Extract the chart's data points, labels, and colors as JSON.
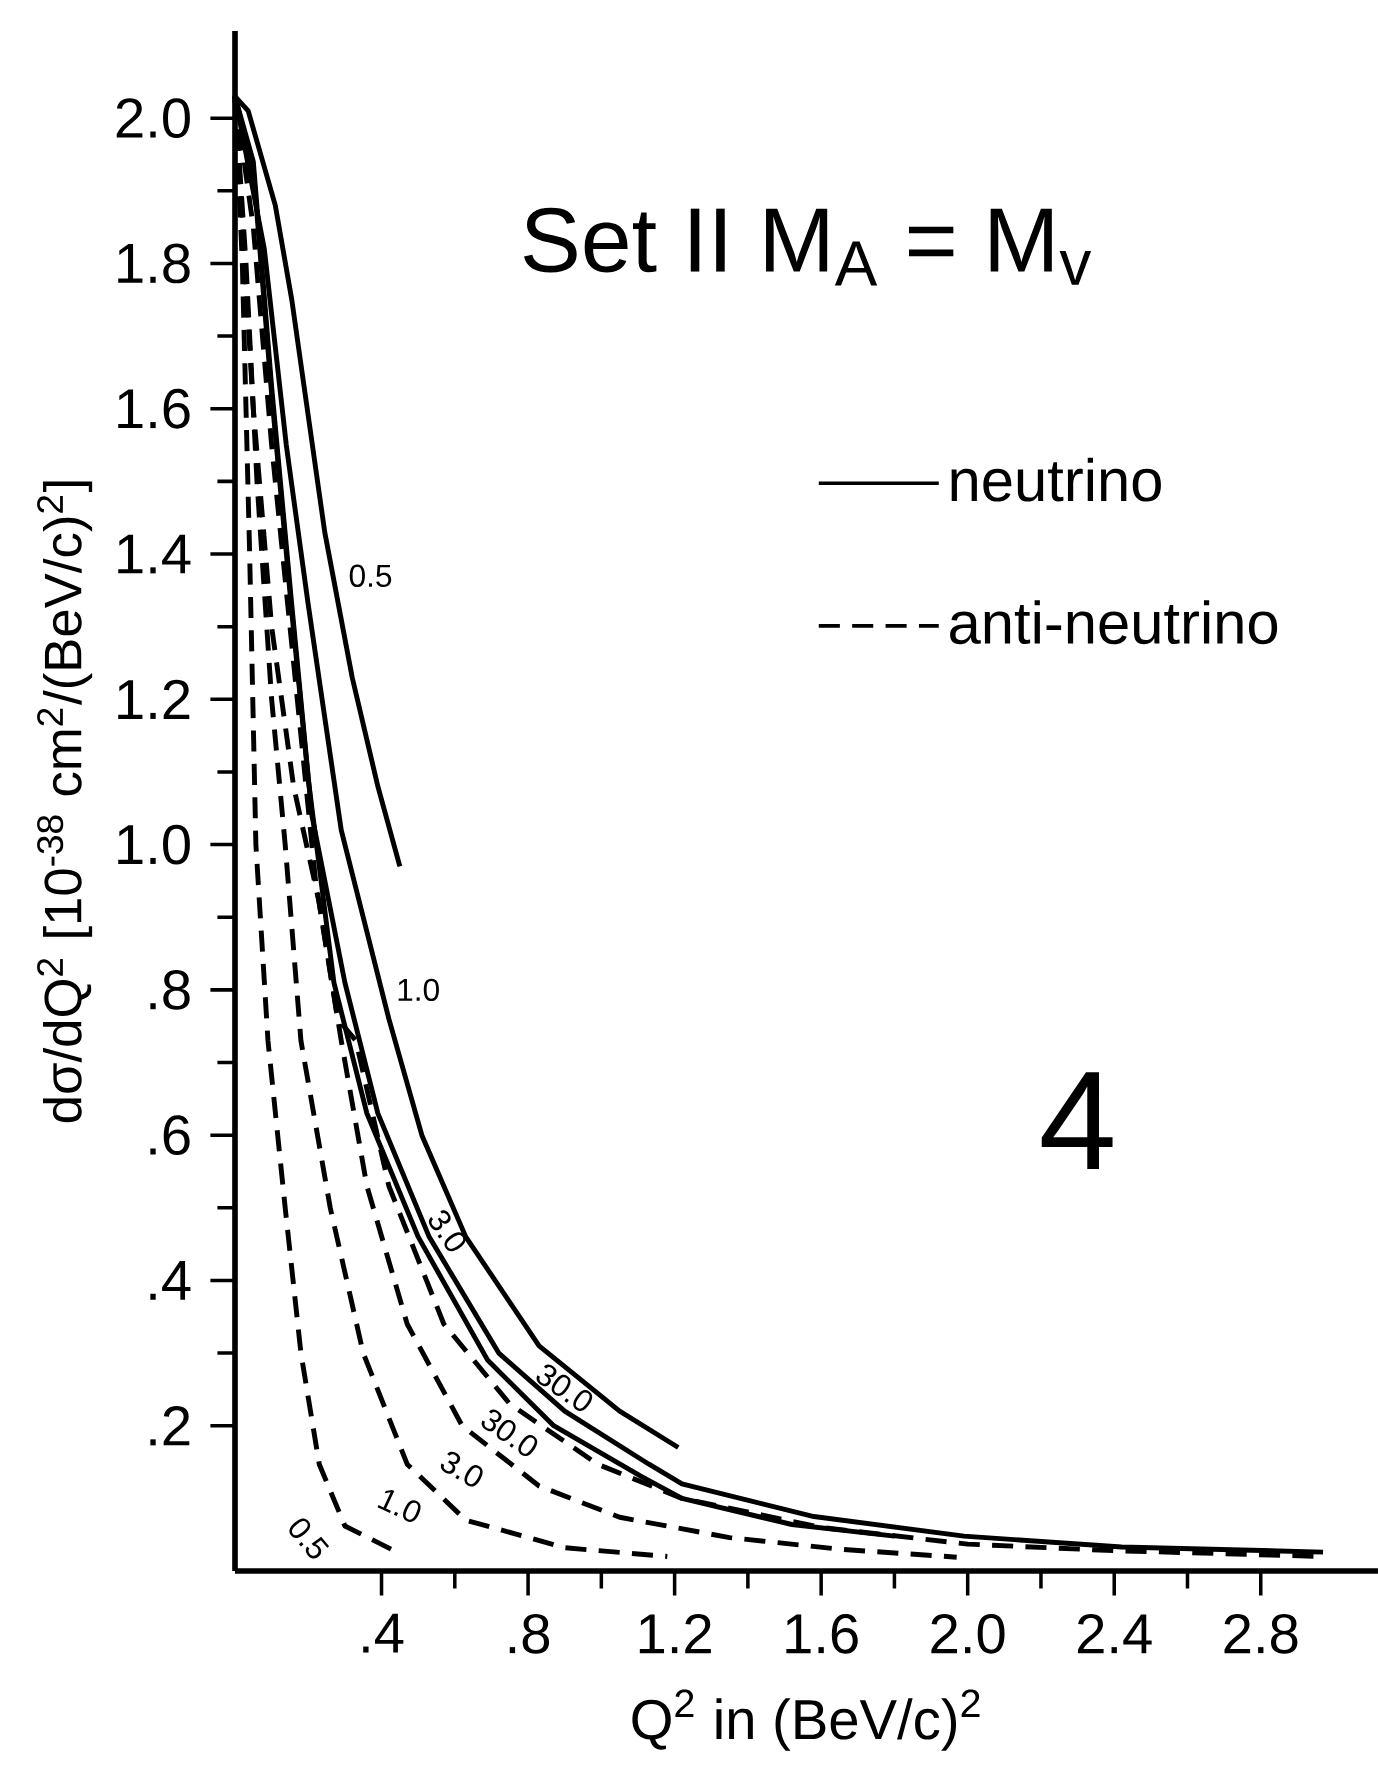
{
  "chart_data": {
    "type": "line",
    "title": "Set II  M$_{A}$ = M$_{v}$",
    "xlabel": "Q$^{2}$ in (BeV/c)$^{2}$",
    "ylabel": "dσ/dQ$^{2}$ [10$^{-38}$ cm$^{2}$/(BeV/c)$^{2}$]",
    "xlim": [
      0,
      3.12
    ],
    "ylim": [
      0,
      2.12
    ],
    "xticks": [
      {
        "value": 0.4,
        "label": ".4"
      },
      {
        "value": 0.8,
        "label": ".8"
      },
      1.2,
      1.6,
      {
        "value": 2.0,
        "label": "2.0"
      },
      2.4,
      2.8
    ],
    "yticks": [
      {
        "value": 0.2,
        "label": ".2"
      },
      {
        "value": 0.4,
        "label": ".4"
      },
      {
        "value": 0.6,
        "label": ".6"
      },
      {
        "value": 0.8,
        "label": ".8"
      },
      {
        "value": 1.0,
        "label": "1.0"
      },
      1.2,
      1.4,
      1.6,
      1.8,
      {
        "value": 2.0,
        "label": "2.0"
      }
    ],
    "grid": false,
    "legend": "right",
    "marker": "none",
    "series": [
      {
        "name": "neutrino",
        "color": "#000000",
        "line_style": "solid",
        "x": [
          0,
          0.036,
          0.11,
          0.155,
          0.2,
          0.245,
          0.32,
          0.39,
          0.45
        ],
        "values": [
          2.03,
          2.01,
          1.88,
          1.75,
          1.59,
          1.43,
          1.23,
          1.08,
          0.97
        ]
      },
      {
        "color": "#000000",
        "line_style": "solid",
        "x": [
          0,
          0.08,
          0.14,
          0.2,
          0.29,
          0.36,
          0.42,
          0.51,
          0.63,
          0.83,
          1.05,
          1.21
        ],
        "values": [
          2.03,
          1.82,
          1.55,
          1.33,
          1.02,
          0.88,
          0.76,
          0.6,
          0.46,
          0.31,
          0.22,
          0.17
        ]
      },
      {
        "color": "#000000",
        "line_style": "solid",
        "x": [
          0,
          0.05,
          0.1,
          0.155,
          0.21,
          0.3,
          0.39,
          0.53,
          0.72,
          0.9,
          1.13,
          1.22,
          1.58,
          1.99,
          2.42,
          2.97
        ],
        "values": [
          2.03,
          1.94,
          1.63,
          1.33,
          1.04,
          0.81,
          0.63,
          0.46,
          0.3,
          0.22,
          0.147,
          0.12,
          0.075,
          0.048,
          0.033,
          0.026
        ]
      },
      {
        "color": "#000000",
        "line_style": "solid",
        "x": [
          0,
          0.05,
          0.1,
          0.155,
          0.2,
          0.27,
          0.36,
          0.5,
          0.69,
          0.87,
          1.11,
          1.22,
          1.52,
          1.8
        ],
        "values": [
          2.03,
          1.93,
          1.62,
          1.32,
          1.09,
          0.81,
          0.63,
          0.46,
          0.29,
          0.2,
          0.13,
          0.1,
          0.064,
          0.048
        ]
      },
      {
        "name": "anti-neutrino",
        "color": "#000000",
        "line_style": "dashed",
        "x": [
          0,
          0.02,
          0.04,
          0.057,
          0.09,
          0.137,
          0.18,
          0.23,
          0.3,
          0.45
        ],
        "values": [
          2.03,
          1.8,
          1.4,
          1.0,
          0.73,
          0.5,
          0.3,
          0.147,
          0.062,
          0.024
        ]
      },
      {
        "color": "#000000",
        "line_style": "dashed",
        "x": [
          0,
          0.03,
          0.06,
          0.1,
          0.137,
          0.18,
          0.26,
          0.35,
          0.47,
          0.63,
          0.9,
          1.18
        ],
        "values": [
          2.03,
          1.8,
          1.5,
          1.2,
          1.0,
          0.73,
          0.5,
          0.3,
          0.147,
          0.07,
          0.032,
          0.02
        ]
      },
      {
        "color": "#000000",
        "line_style": "dashed",
        "x": [
          0,
          0.05,
          0.1,
          0.16,
          0.23,
          0.29,
          0.36,
          0.47,
          0.62,
          0.83,
          1.05,
          1.35,
          1.65,
          1.97
        ],
        "values": [
          2.03,
          1.6,
          1.3,
          1.08,
          0.92,
          0.73,
          0.53,
          0.34,
          0.2,
          0.117,
          0.074,
          0.046,
          0.03,
          0.019
        ]
      },
      {
        "color": "#000000",
        "line_style": "dashed",
        "x": [
          0,
          0.05,
          0.1,
          0.16,
          0.22,
          0.28,
          0.33,
          0.42,
          0.57,
          0.75,
          0.99,
          1.22,
          1.6,
          2.0,
          2.4,
          2.97
        ],
        "values": [
          2.03,
          1.85,
          1.55,
          1.25,
          0.95,
          0.76,
          0.73,
          0.53,
          0.34,
          0.23,
          0.147,
          0.1,
          0.06,
          0.037,
          0.028,
          0.02
        ]
      }
    ],
    "annotations": [
      "0.5",
      "1.0",
      "3.0",
      "30.0",
      "30.0",
      "3.0",
      "1.0",
      "0.5",
      "4"
    ]
  }
}
